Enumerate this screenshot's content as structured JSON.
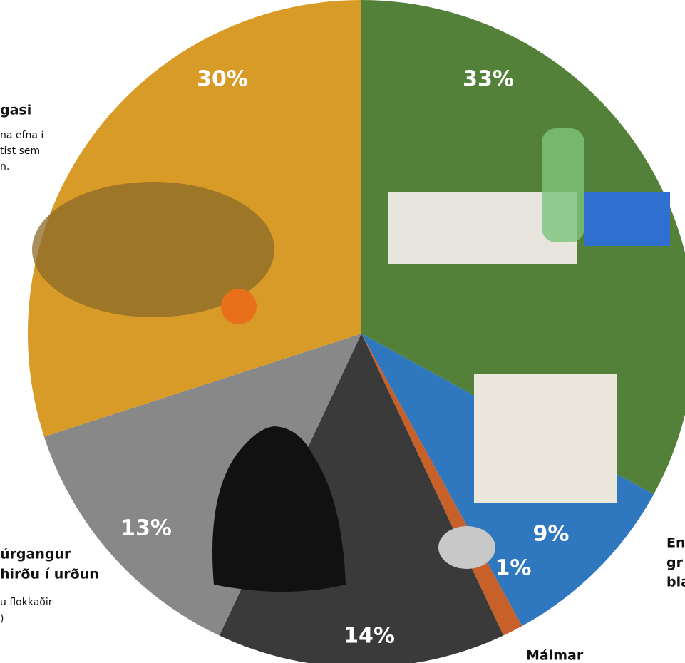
{
  "chart_data": {
    "type": "pie",
    "values": [
      33,
      9,
      1,
      14,
      13,
      30
    ],
    "value_labels": [
      "33%",
      "9%",
      "1%",
      "14%",
      "13%",
      "30%"
    ],
    "colors": [
      "#54813a",
      "#2f78bf",
      "#c8602a",
      "#3a3a3a",
      "#888888",
      "#d89b27"
    ],
    "annotations": [
      "gasi",
      "na efna í",
      "tist sem",
      "n.",
      "úrgangur",
      "hirðu í urðun",
      "u flokkaðir",
      ")",
      "En",
      "gr",
      "bla",
      "Málmar"
    ]
  }
}
